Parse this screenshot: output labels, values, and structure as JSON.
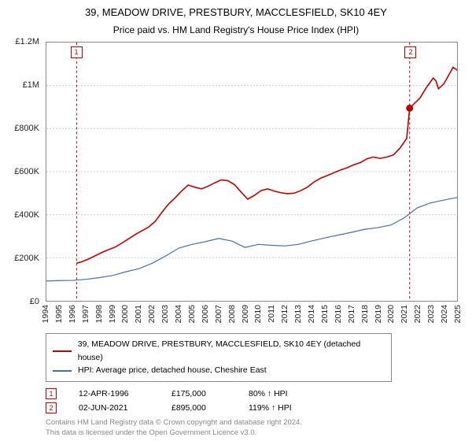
{
  "title_line1": "39, MEADOW DRIVE, PRESTBURY, MACCLESFIELD, SK10 4EY",
  "title_line2": "Price paid vs. HM Land Registry's House Price Index (HPI)",
  "chart": {
    "type": "line",
    "years": [
      1994,
      1995,
      1996,
      1997,
      1998,
      1999,
      2000,
      2001,
      2002,
      2003,
      2004,
      2005,
      2006,
      2007,
      2008,
      2009,
      2010,
      2011,
      2012,
      2013,
      2014,
      2015,
      2016,
      2017,
      2018,
      2019,
      2020,
      2021,
      2022,
      2023,
      2024,
      2025
    ],
    "ylim": [
      0,
      1200000
    ],
    "ytick_step": 200000,
    "ytick_labels": [
      "£0",
      "£200K",
      "£400K",
      "£600K",
      "£800K",
      "£1M",
      "£1.2M"
    ],
    "background_color": "#ffffff",
    "grid_color": "#cccccc",
    "axis_color": "#888888",
    "series": {
      "red": {
        "label": "39, MEADOW DRIVE, PRESTBURY, MACCLESFIELD, SK10 4EY (detached house)",
        "color": "#c00000",
        "stroke_width": 1.6,
        "data": [
          [
            1996.28,
            175000
          ],
          [
            1996.7,
            182000
          ],
          [
            1997.2,
            195000
          ],
          [
            1997.7,
            210000
          ],
          [
            1998.2,
            225000
          ],
          [
            1998.7,
            238000
          ],
          [
            1999.2,
            250000
          ],
          [
            1999.7,
            268000
          ],
          [
            2000.2,
            288000
          ],
          [
            2000.7,
            308000
          ],
          [
            2001.2,
            325000
          ],
          [
            2001.7,
            342000
          ],
          [
            2002.2,
            368000
          ],
          [
            2002.7,
            410000
          ],
          [
            2003.2,
            448000
          ],
          [
            2003.7,
            478000
          ],
          [
            2004.2,
            510000
          ],
          [
            2004.7,
            538000
          ],
          [
            2005.2,
            528000
          ],
          [
            2005.7,
            520000
          ],
          [
            2006.2,
            532000
          ],
          [
            2006.7,
            548000
          ],
          [
            2007.2,
            562000
          ],
          [
            2007.7,
            558000
          ],
          [
            2008.2,
            540000
          ],
          [
            2008.7,
            505000
          ],
          [
            2009.2,
            472000
          ],
          [
            2009.7,
            490000
          ],
          [
            2010.2,
            512000
          ],
          [
            2010.7,
            520000
          ],
          [
            2011.2,
            510000
          ],
          [
            2011.7,
            502000
          ],
          [
            2012.2,
            498000
          ],
          [
            2012.7,
            500000
          ],
          [
            2013.2,
            512000
          ],
          [
            2013.7,
            528000
          ],
          [
            2014.2,
            552000
          ],
          [
            2014.7,
            570000
          ],
          [
            2015.2,
            582000
          ],
          [
            2015.7,
            595000
          ],
          [
            2016.2,
            608000
          ],
          [
            2016.7,
            618000
          ],
          [
            2017.2,
            632000
          ],
          [
            2017.7,
            642000
          ],
          [
            2018.2,
            660000
          ],
          [
            2018.7,
            668000
          ],
          [
            2019.2,
            662000
          ],
          [
            2019.7,
            668000
          ],
          [
            2020.2,
            678000
          ],
          [
            2020.7,
            710000
          ],
          [
            2021.2,
            755000
          ],
          [
            2021.42,
            895000
          ],
          [
            2021.7,
            912000
          ],
          [
            2022.2,
            942000
          ],
          [
            2022.7,
            992000
          ],
          [
            2023.2,
            1035000
          ],
          [
            2023.4,
            1022000
          ],
          [
            2023.6,
            985000
          ],
          [
            2024.0,
            1008000
          ],
          [
            2024.4,
            1052000
          ],
          [
            2024.7,
            1085000
          ],
          [
            2025.0,
            1072000
          ],
          [
            2025.3,
            1095000
          ]
        ]
      },
      "blue": {
        "label": "HPI: Average price, detached house, Cheshire East",
        "color": "#4a6fa5",
        "stroke_width": 1.2,
        "data": [
          [
            1994.0,
            92000
          ],
          [
            1995.0,
            94000
          ],
          [
            1996.0,
            95000
          ],
          [
            1997.0,
            100000
          ],
          [
            1998.0,
            108000
          ],
          [
            1999.0,
            118000
          ],
          [
            2000.0,
            135000
          ],
          [
            2001.0,
            150000
          ],
          [
            2002.0,
            175000
          ],
          [
            2003.0,
            208000
          ],
          [
            2004.0,
            245000
          ],
          [
            2005.0,
            262000
          ],
          [
            2006.0,
            275000
          ],
          [
            2007.0,
            290000
          ],
          [
            2008.0,
            278000
          ],
          [
            2009.0,
            248000
          ],
          [
            2010.0,
            262000
          ],
          [
            2011.0,
            258000
          ],
          [
            2012.0,
            255000
          ],
          [
            2013.0,
            262000
          ],
          [
            2014.0,
            278000
          ],
          [
            2015.0,
            292000
          ],
          [
            2016.0,
            305000
          ],
          [
            2017.0,
            318000
          ],
          [
            2018.0,
            332000
          ],
          [
            2019.0,
            340000
          ],
          [
            2020.0,
            352000
          ],
          [
            2021.0,
            385000
          ],
          [
            2022.0,
            432000
          ],
          [
            2023.0,
            455000
          ],
          [
            2024.0,
            468000
          ],
          [
            2025.0,
            480000
          ],
          [
            2025.3,
            485000
          ]
        ]
      }
    },
    "vlines": [
      {
        "year": 1996.28,
        "label": "1"
      },
      {
        "year": 2021.42,
        "label": "2"
      }
    ],
    "sale_dot": {
      "year": 2021.42,
      "value": 895000,
      "fill": "#c00000"
    }
  },
  "legend_items": [
    {
      "color": "#c00000",
      "label_key": "chart.series.red.label"
    },
    {
      "color": "#4a6fa5",
      "label_key": "chart.series.blue.label"
    }
  ],
  "events": [
    {
      "n": "1",
      "date": "12-APR-1996",
      "price": "£175,000",
      "pct": "80% ↑ HPI"
    },
    {
      "n": "2",
      "date": "02-JUN-2021",
      "price": "£895,000",
      "pct": "119% ↑ HPI"
    }
  ],
  "footer": {
    "line1": "Contains HM Land Registry data © Crown copyright and database right 2024.",
    "line2": "This data is licensed under the Open Government Licence v3.0."
  }
}
